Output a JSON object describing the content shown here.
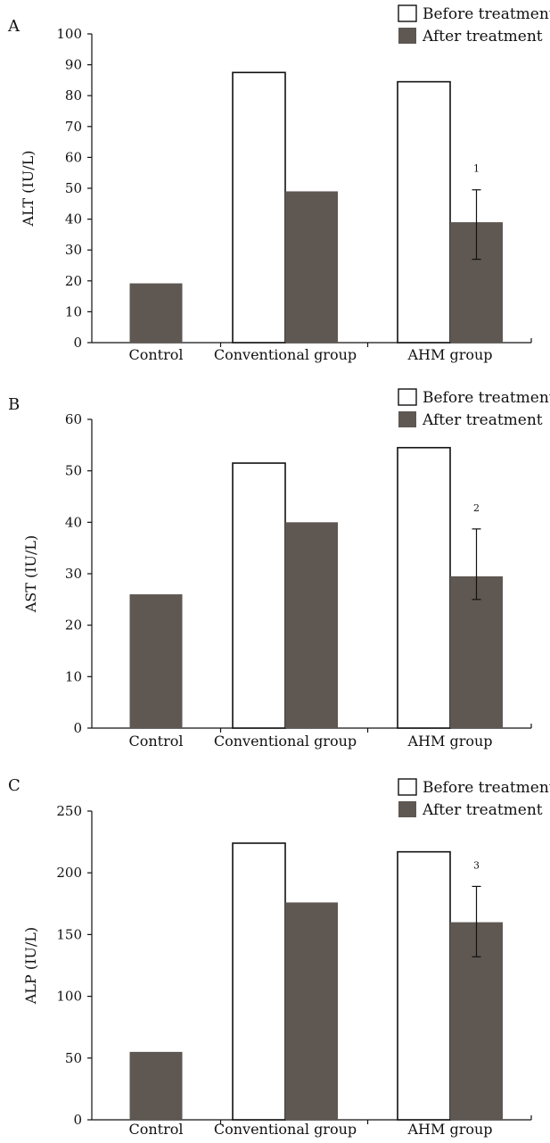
{
  "chart_data": [
    {
      "type": "bar",
      "panel_label": "A",
      "ylabel": "ALT (IU/L)",
      "ylim": [
        0,
        100
      ],
      "yticks": [
        0,
        10,
        20,
        30,
        40,
        50,
        60,
        70,
        80,
        90,
        100
      ],
      "categories": [
        "Control",
        "Conventional group",
        "AHM group"
      ],
      "series": [
        {
          "name": "Before treatment",
          "values": [
            null,
            87.5,
            84.5
          ],
          "color": "#ffffff"
        },
        {
          "name": "After treatment",
          "values": [
            19.2,
            49.0,
            39.0
          ],
          "color": "#5e5752"
        }
      ],
      "error_bars": [
        {
          "category": "AHM group",
          "series": "After treatment",
          "low": 27.0,
          "high": 49.5
        }
      ],
      "annotations": [
        {
          "category": "AHM group",
          "text": "1"
        }
      ],
      "legend": "top-right"
    },
    {
      "type": "bar",
      "panel_label": "B",
      "ylabel": "AST (IU/L)",
      "ylim": [
        0,
        60
      ],
      "yticks": [
        0,
        10,
        20,
        30,
        40,
        50,
        60
      ],
      "categories": [
        "Control",
        "Conventional group",
        "AHM group"
      ],
      "series": [
        {
          "name": "Before treatment",
          "values": [
            null,
            51.5,
            54.5
          ],
          "color": "#ffffff"
        },
        {
          "name": "After treatment",
          "values": [
            26.0,
            40.0,
            29.5
          ],
          "color": "#5e5752"
        }
      ],
      "error_bars": [
        {
          "category": "AHM group",
          "series": "After treatment",
          "low": 25.0,
          "high": 38.7
        }
      ],
      "annotations": [
        {
          "category": "AHM group",
          "text": "2"
        }
      ],
      "legend": "top-right"
    },
    {
      "type": "bar",
      "panel_label": "C",
      "ylabel": "ALP (IU/L)",
      "ylim": [
        0,
        250
      ],
      "yticks": [
        0,
        50,
        100,
        150,
        200,
        250
      ],
      "categories": [
        "Control",
        "Conventional group",
        "AHM group"
      ],
      "series": [
        {
          "name": "Before treatment",
          "values": [
            null,
            224,
            217
          ],
          "color": "#ffffff"
        },
        {
          "name": "After treatment",
          "values": [
            55,
            176,
            160
          ],
          "color": "#5e5752"
        }
      ],
      "error_bars": [
        {
          "category": "AHM group",
          "series": "After treatment",
          "low": 132,
          "high": 189
        }
      ],
      "annotations": [
        {
          "category": "AHM group",
          "text": "3"
        }
      ],
      "legend": "top-right"
    }
  ]
}
